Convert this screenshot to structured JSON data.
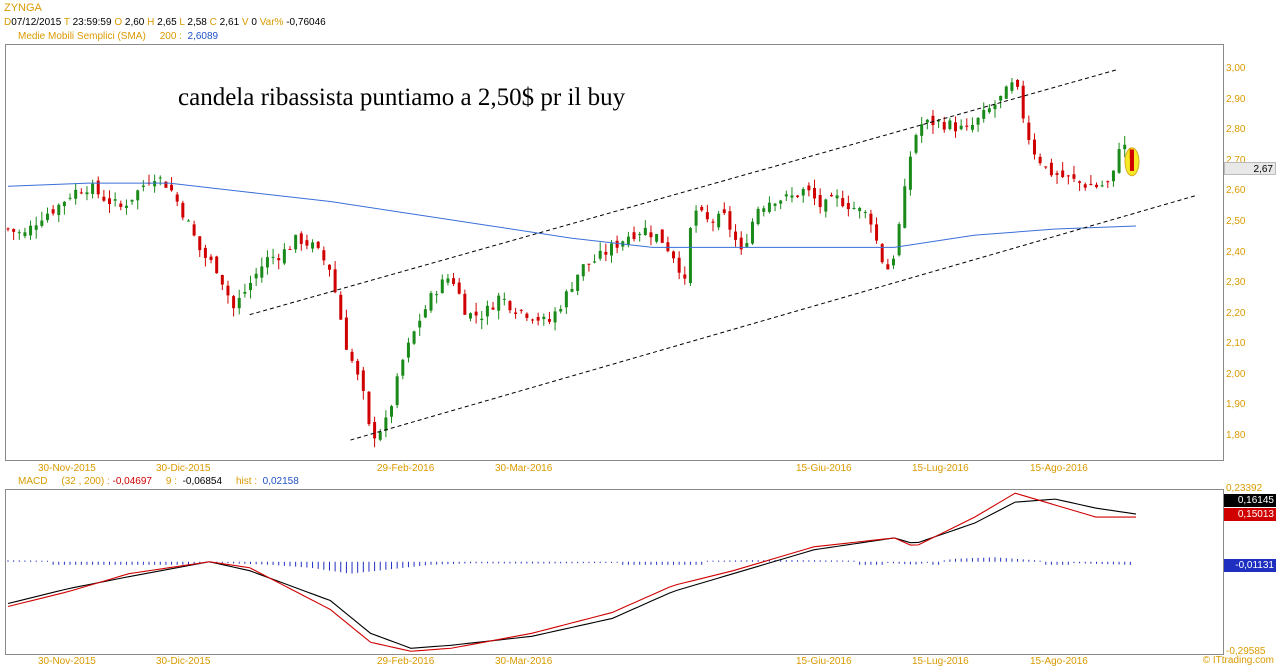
{
  "header": {
    "symbol": "ZYNGA",
    "d_label": "D",
    "date": "07/12/2015",
    "t_label": "T",
    "time": "23:59:59",
    "o_label": "O",
    "open": "2,60",
    "h_label": "H",
    "high": "2,65",
    "l_label": "L",
    "low": "2,58",
    "c_label": "C",
    "close": "2,61",
    "v_label": "V",
    "volume": "0",
    "var_label": "Var%",
    "var": "-0,76046",
    "sma_label": "Medie Mobili Semplici (SMA)",
    "sma_period": "200 :",
    "sma_value": "2,6089"
  },
  "annotation": "candela ribassista puntiamo a 2,50$ pr il buy",
  "price_axis": {
    "ticks": [
      "3,00",
      "2,90",
      "2,80",
      "2,70",
      "2,60",
      "2,50",
      "2,40",
      "2,30",
      "2,20",
      "2,10",
      "2,00",
      "1,90",
      "1,80"
    ],
    "current_price": "2,67"
  },
  "x_axis": {
    "labels": [
      "30-Nov-2015",
      "30-Dic-2015",
      "29-Feb-2016",
      "30-Mar-2016",
      "15-Giu-2016",
      "15-Lug-2016",
      "15-Ago-2016"
    ]
  },
  "macd": {
    "label": "MACD",
    "params": "(32 , 200) :",
    "macd_value": "-0,04697",
    "signal_label": "9 :",
    "signal_value": "-0,06854",
    "hist_label": "hist :",
    "hist_value": "0,02158",
    "axis_top": "0,23392",
    "axis_bottom": "-0,29585",
    "box_black": "0,16145",
    "box_red": "0,15013",
    "box_blue": "-0,01131"
  },
  "credit": "© ITtrading.com",
  "colors": {
    "up": "#1a8a1a",
    "down": "#d00000",
    "sma": "#3a6fd8",
    "axis_text": "#d99a00",
    "macd_line": "#000000",
    "signal_line": "#d00000",
    "hist": "#1f2fc0",
    "highlight": "#f5e600"
  },
  "chart_data": [
    {
      "type": "candlestick",
      "title": "ZYNGA",
      "x_labels": [
        "30-Nov-2015",
        "30-Dic-2015",
        "29-Feb-2016",
        "30-Mar-2016",
        "15-Giu-2016",
        "15-Lug-2016",
        "15-Ago-2016"
      ],
      "ylim": [
        1.76,
        3.03
      ],
      "close_path": [
        [
          0,
          2.48
        ],
        [
          4,
          2.46
        ],
        [
          8,
          2.52
        ],
        [
          12,
          2.55
        ],
        [
          16,
          2.6
        ],
        [
          20,
          2.62
        ],
        [
          24,
          2.58
        ],
        [
          28,
          2.55
        ],
        [
          32,
          2.6
        ],
        [
          36,
          2.66
        ],
        [
          40,
          2.62
        ],
        [
          44,
          2.52
        ],
        [
          48,
          2.4
        ],
        [
          52,
          2.35
        ],
        [
          56,
          2.22
        ],
        [
          60,
          2.3
        ],
        [
          64,
          2.38
        ],
        [
          68,
          2.4
        ],
        [
          72,
          2.45
        ],
        [
          76,
          2.42
        ],
        [
          80,
          2.35
        ],
        [
          84,
          2.1
        ],
        [
          88,
          1.95
        ],
        [
          90,
          1.8
        ],
        [
          92,
          1.82
        ],
        [
          94,
          1.85
        ],
        [
          98,
          2.05
        ],
        [
          102,
          2.18
        ],
        [
          106,
          2.28
        ],
        [
          110,
          2.33
        ],
        [
          114,
          2.2
        ],
        [
          118,
          2.2
        ],
        [
          122,
          2.26
        ],
        [
          126,
          2.22
        ],
        [
          130,
          2.2
        ],
        [
          134,
          2.17
        ],
        [
          138,
          2.25
        ],
        [
          142,
          2.35
        ],
        [
          146,
          2.38
        ],
        [
          150,
          2.42
        ],
        [
          154,
          2.46
        ],
        [
          158,
          2.48
        ],
        [
          162,
          2.45
        ],
        [
          166,
          2.38
        ],
        [
          168,
          2.3
        ],
        [
          170,
          2.55
        ],
        [
          174,
          2.5
        ],
        [
          178,
          2.52
        ],
        [
          182,
          2.4
        ],
        [
          186,
          2.55
        ],
        [
          190,
          2.58
        ],
        [
          194,
          2.58
        ],
        [
          198,
          2.61
        ],
        [
          202,
          2.55
        ],
        [
          206,
          2.58
        ],
        [
          210,
          2.55
        ],
        [
          214,
          2.52
        ],
        [
          216,
          2.42
        ],
        [
          218,
          2.34
        ],
        [
          220,
          2.4
        ],
        [
          222,
          2.55
        ],
        [
          224,
          2.72
        ],
        [
          226,
          2.82
        ],
        [
          230,
          2.83
        ],
        [
          234,
          2.82
        ],
        [
          238,
          2.8
        ],
        [
          242,
          2.85
        ],
        [
          246,
          2.9
        ],
        [
          250,
          2.96
        ],
        [
          252,
          2.85
        ],
        [
          254,
          2.75
        ],
        [
          258,
          2.67
        ],
        [
          262,
          2.65
        ],
        [
          266,
          2.63
        ],
        [
          270,
          2.62
        ],
        [
          274,
          2.63
        ],
        [
          276,
          2.77
        ],
        [
          278,
          2.73
        ],
        [
          280,
          2.67
        ]
      ],
      "sma_200": [
        [
          0,
          2.62
        ],
        [
          20,
          2.63
        ],
        [
          40,
          2.63
        ],
        [
          60,
          2.6
        ],
        [
          80,
          2.57
        ],
        [
          100,
          2.53
        ],
        [
          120,
          2.49
        ],
        [
          140,
          2.45
        ],
        [
          160,
          2.42
        ],
        [
          180,
          2.42
        ],
        [
          200,
          2.42
        ],
        [
          220,
          2.42
        ],
        [
          230,
          2.44
        ],
        [
          240,
          2.46
        ],
        [
          260,
          2.48
        ],
        [
          280,
          2.49
        ]
      ],
      "trend_lines": [
        {
          "from": [
            60,
            2.2
          ],
          "to": [
            275,
            3.0
          ]
        },
        {
          "from": [
            85,
            1.79
          ],
          "to": [
            295,
            2.59
          ]
        }
      ]
    },
    {
      "type": "line",
      "title": "MACD",
      "ylim": [
        -0.29585,
        0.23392
      ],
      "series": [
        {
          "name": "MACD",
          "points": [
            [
              0,
              -0.14
            ],
            [
              15,
              -0.09
            ],
            [
              30,
              -0.05
            ],
            [
              50,
              0.0
            ],
            [
              60,
              -0.03
            ],
            [
              70,
              -0.08
            ],
            [
              80,
              -0.13
            ],
            [
              90,
              -0.24
            ],
            [
              100,
              -0.29
            ],
            [
              110,
              -0.28
            ],
            [
              130,
              -0.25
            ],
            [
              150,
              -0.19
            ],
            [
              165,
              -0.1
            ],
            [
              180,
              -0.04
            ],
            [
              200,
              0.04
            ],
            [
              220,
              0.08
            ],
            [
              225,
              0.06
            ],
            [
              240,
              0.13
            ],
            [
              250,
              0.2
            ],
            [
              260,
              0.21
            ],
            [
              270,
              0.18
            ],
            [
              280,
              0.16
            ]
          ]
        },
        {
          "name": "9",
          "points": [
            [
              0,
              -0.15
            ],
            [
              15,
              -0.1
            ],
            [
              30,
              -0.04
            ],
            [
              50,
              0.0
            ],
            [
              60,
              -0.02
            ],
            [
              70,
              -0.09
            ],
            [
              80,
              -0.16
            ],
            [
              90,
              -0.27
            ],
            [
              100,
              -0.3
            ],
            [
              110,
              -0.29
            ],
            [
              130,
              -0.24
            ],
            [
              150,
              -0.17
            ],
            [
              165,
              -0.08
            ],
            [
              180,
              -0.03
            ],
            [
              200,
              0.05
            ],
            [
              220,
              0.08
            ],
            [
              225,
              0.05
            ],
            [
              240,
              0.15
            ],
            [
              250,
              0.23
            ],
            [
              260,
              0.19
            ],
            [
              270,
              0.15
            ],
            [
              280,
              0.15
            ]
          ]
        }
      ],
      "histogram": [
        [
          0,
          0.005
        ],
        [
          20,
          0.002
        ],
        [
          40,
          -0.002
        ],
        [
          55,
          -0.005
        ],
        [
          65,
          -0.01
        ],
        [
          75,
          -0.02
        ],
        [
          85,
          -0.04
        ],
        [
          95,
          -0.025
        ],
        [
          105,
          -0.01
        ],
        [
          115,
          -0.005
        ],
        [
          130,
          -0.006
        ],
        [
          150,
          -0.004
        ],
        [
          170,
          0.003
        ],
        [
          190,
          0.006
        ],
        [
          210,
          0.004
        ],
        [
          225,
          -0.01
        ],
        [
          235,
          0.01
        ],
        [
          245,
          0.015
        ],
        [
          255,
          0.005
        ],
        [
          265,
          -0.005
        ],
        [
          280,
          -0.011
        ]
      ]
    }
  ]
}
